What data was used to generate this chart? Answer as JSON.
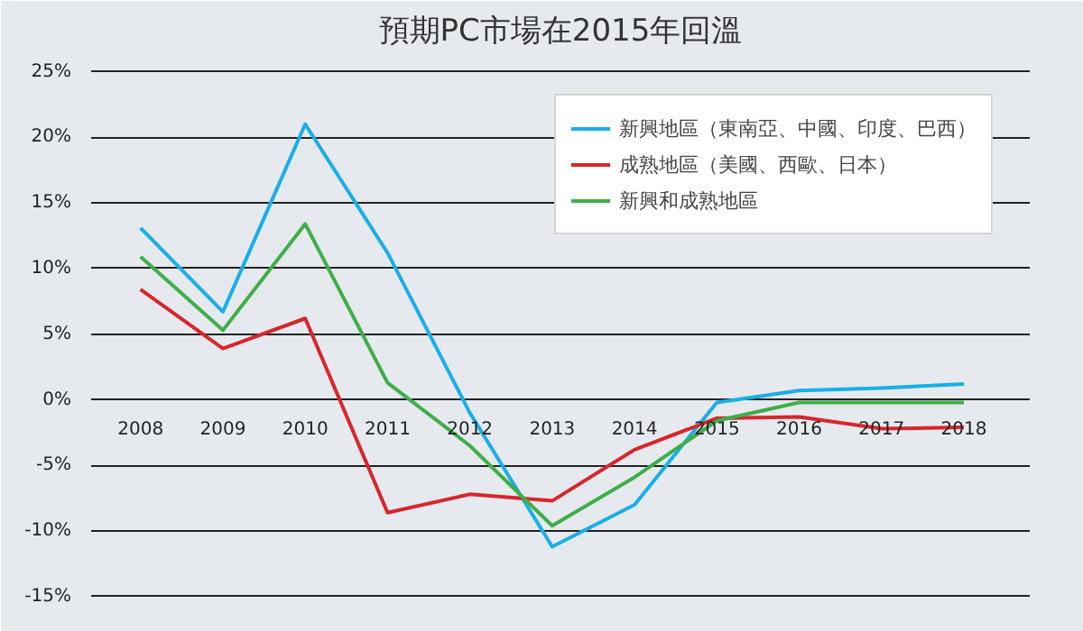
{
  "chart_data": {
    "type": "line",
    "title": "預期PC市場在2015年回溫",
    "categories": [
      "2008",
      "2009",
      "2010",
      "2011",
      "2012",
      "2013",
      "2014",
      "2015",
      "2016",
      "2017",
      "2018"
    ],
    "series": [
      {
        "name": "新興地區（東南亞、中國、印度、巴西）",
        "color": "#1aaee8",
        "values": [
          13.1,
          6.7,
          21,
          11.2,
          -1,
          -11.2,
          -8,
          -0.2,
          0.7,
          0.9,
          1.2
        ]
      },
      {
        "name": "成熟地區（美國、西歐、日本）",
        "color": "#d7262c",
        "values": [
          8.4,
          3.9,
          6.2,
          -8.6,
          -7.2,
          -7.7,
          -3.8,
          -1.4,
          -1.3,
          -2.2,
          -2.1
        ]
      },
      {
        "name": "新興和成熟地區",
        "color": "#3fae49",
        "values": [
          10.9,
          5.3,
          13.4,
          1.3,
          -3.5,
          -9.6,
          -5.9,
          -1.6,
          -0.2,
          -0.2,
          -0.2
        ]
      }
    ],
    "ylim": [
      -17,
      26
    ],
    "yticks": [
      {
        "value": -15,
        "label": "-15%"
      },
      {
        "value": -10,
        "label": "-10%"
      },
      {
        "value": -5,
        "label": "-5%"
      },
      {
        "value": 0,
        "label": "0%"
      },
      {
        "value": 5,
        "label": "5%"
      },
      {
        "value": 10,
        "label": "10%"
      },
      {
        "value": 15,
        "label": "15%"
      },
      {
        "value": 20,
        "label": "20%"
      },
      {
        "value": 25,
        "label": "25%"
      }
    ],
    "grid": "y",
    "legend": "top right",
    "marker": "none",
    "line_style": "solid"
  }
}
